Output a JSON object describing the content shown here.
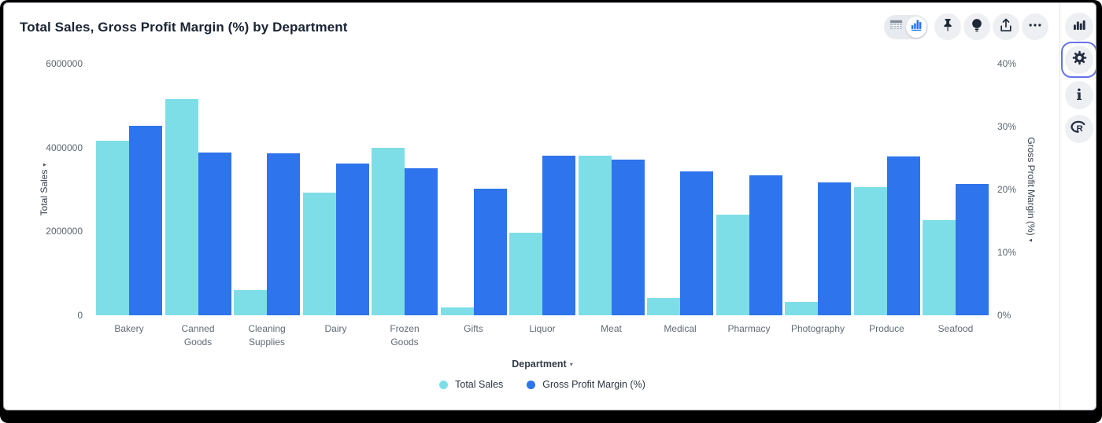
{
  "header": {
    "title": "Total Sales, Gross Profit Margin (%) by Department"
  },
  "toolbar": {
    "view_toggle": [
      {
        "icon": "table-view-icon",
        "selected": false
      },
      {
        "icon": "bar-chart-view-icon",
        "selected": true
      }
    ],
    "buttons": [
      {
        "icon": "pin-icon"
      },
      {
        "icon": "lightbulb-icon"
      },
      {
        "icon": "share-icon"
      },
      {
        "icon": "ellipsis-icon"
      }
    ]
  },
  "right_rail": {
    "buttons": [
      {
        "icon": "bar-chart-panel-icon",
        "selected": false,
        "glyph": ""
      },
      {
        "icon": "gear-icon",
        "selected": true,
        "glyph": ""
      },
      {
        "icon": "info-icon",
        "selected": false,
        "glyph": "i"
      },
      {
        "icon": "r-logo-icon",
        "selected": false,
        "glyph": "R"
      }
    ]
  },
  "colors": {
    "total_sales": "#7EDEE8",
    "gross_profit_margin": "#2E74EC",
    "selected_outline": "#6673E8",
    "icon_dark": "#242E42"
  },
  "chart_data": {
    "type": "bar",
    "title": "Total Sales, Gross Profit Margin (%) by Department",
    "grid": false,
    "legend_position": "bottom",
    "categories": [
      "Bakery",
      "Canned Goods",
      "Cleaning Supplies",
      "Dairy",
      "Frozen Goods",
      "Gifts",
      "Liquor",
      "Meat",
      "Medical",
      "Pharmacy",
      "Photography",
      "Produce",
      "Seafood"
    ],
    "category_label_lines": [
      [
        "Bakery"
      ],
      [
        "Canned",
        "Goods"
      ],
      [
        "Cleaning",
        "Supplies"
      ],
      [
        "Dairy"
      ],
      [
        "Frozen",
        "Goods"
      ],
      [
        "Gifts"
      ],
      [
        "Liquor"
      ],
      [
        "Meat"
      ],
      [
        "Medical"
      ],
      [
        "Pharmacy"
      ],
      [
        "Photography"
      ],
      [
        "Produce"
      ],
      [
        "Seafood"
      ]
    ],
    "series": [
      {
        "name": "Total Sales",
        "axis": "left",
        "color": "#7EDEE8",
        "values": [
          4160000,
          5160000,
          600000,
          2930000,
          3990000,
          180000,
          1970000,
          3810000,
          410000,
          2400000,
          310000,
          3060000,
          2260000
        ]
      },
      {
        "name": "Gross Profit Margin (%)",
        "axis": "right",
        "color": "#2E74EC",
        "values": [
          30.1,
          25.9,
          25.8,
          24.1,
          23.4,
          20.1,
          25.4,
          24.7,
          22.9,
          22.3,
          21.1,
          25.3,
          20.9
        ]
      }
    ],
    "left_axis": {
      "label": "Total Sales",
      "min": 0,
      "max": 6000000,
      "sort_indicator": "▾",
      "ticks": [
        {
          "label": "6000000",
          "value": 6000000
        },
        {
          "label": "4000000",
          "value": 4000000
        },
        {
          "label": "2000000",
          "value": 2000000
        },
        {
          "label": "0",
          "value": 0
        }
      ]
    },
    "right_axis": {
      "label": "Gross Profit Margin (%)",
      "min": 0,
      "max": 40,
      "sort_indicator": "▾",
      "ticks": [
        {
          "label": "40%",
          "value": 40
        },
        {
          "label": "30%",
          "value": 30
        },
        {
          "label": "20%",
          "value": 20
        },
        {
          "label": "10%",
          "value": 10
        },
        {
          "label": "0%",
          "value": 0
        }
      ]
    },
    "x_axis": {
      "label": "Department",
      "dropdown_indicator": "▾"
    }
  }
}
